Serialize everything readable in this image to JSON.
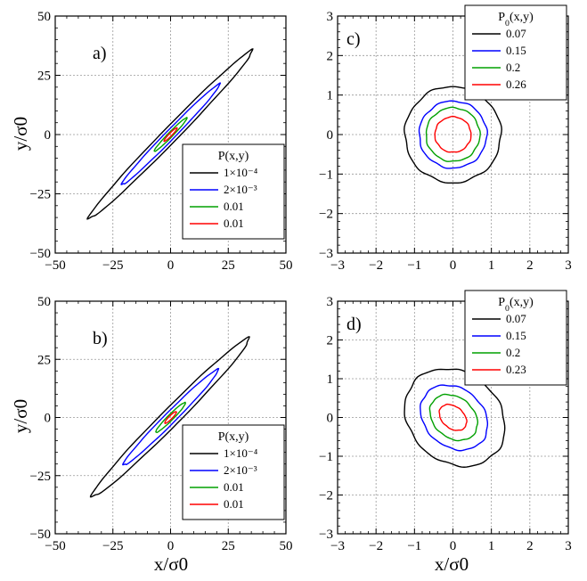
{
  "figure_axis_labels": {
    "y_left": "y/σ0",
    "x_left": "x/σ0",
    "x_right": "x/σ0"
  },
  "chart_data": [
    {
      "id": "a",
      "panel_label": "a)",
      "type": "line",
      "subtype": "contour",
      "xlim": [
        -50,
        50
      ],
      "ylim": [
        -50,
        50
      ],
      "xticks": [
        -50,
        -25,
        0,
        25,
        50
      ],
      "yticks": [
        -50,
        -25,
        0,
        25,
        50
      ],
      "grid": true,
      "legend_placement": "bottom-right",
      "legend_title": "P(x,y)",
      "contours": [
        {
          "label": "1×10⁻⁴",
          "color": "#000000",
          "shape": "ellipse",
          "center": [
            0,
            0
          ],
          "semi_major": 50.0,
          "semi_minor": 3.2,
          "angle_deg": 45
        },
        {
          "label": "2×10⁻³",
          "color": "#0000ff",
          "shape": "ellipse",
          "center": [
            0,
            0
          ],
          "semi_major": 30.0,
          "semi_minor": 2.0,
          "angle_deg": 45
        },
        {
          "label": "0.01",
          "color": "#00a000",
          "shape": "ellipse",
          "center": [
            0,
            0
          ],
          "semi_major": 10.0,
          "semi_minor": 1.0,
          "angle_deg": 45
        },
        {
          "label": "0.01",
          "color": "#ff0000",
          "shape": "ellipse",
          "center": [
            0,
            0
          ],
          "semi_major": 4.0,
          "semi_minor": 0.6,
          "angle_deg": 45
        }
      ]
    },
    {
      "id": "b",
      "panel_label": "b)",
      "type": "line",
      "subtype": "contour",
      "xlim": [
        -50,
        50
      ],
      "ylim": [
        -50,
        50
      ],
      "xticks": [
        -50,
        -25,
        0,
        25,
        50
      ],
      "yticks": [
        -50,
        -25,
        0,
        25,
        50
      ],
      "grid": true,
      "legend_placement": "bottom-right",
      "legend_title": "P(x,y)",
      "contours": [
        {
          "label": "1×10⁻⁴",
          "color": "#000000",
          "shape": "ellipse",
          "center": [
            0,
            0
          ],
          "semi_major": 48.0,
          "semi_minor": 3.8,
          "angle_deg": 45
        },
        {
          "label": "2×10⁻³",
          "color": "#0000ff",
          "shape": "ellipse",
          "center": [
            0,
            0
          ],
          "semi_major": 29.0,
          "semi_minor": 2.4,
          "angle_deg": 45
        },
        {
          "label": "0.01",
          "color": "#00a000",
          "shape": "ellipse",
          "center": [
            0,
            0
          ],
          "semi_major": 9.0,
          "semi_minor": 1.2,
          "angle_deg": 45
        },
        {
          "label": "0.01",
          "color": "#ff0000",
          "shape": "ellipse",
          "center": [
            0,
            0
          ],
          "semi_major": 3.5,
          "semi_minor": 0.7,
          "angle_deg": 45
        }
      ]
    },
    {
      "id": "c",
      "panel_label": "c)",
      "type": "line",
      "subtype": "contour",
      "xlim": [
        -3,
        3
      ],
      "ylim": [
        -3,
        3
      ],
      "xticks": [
        -3,
        -2,
        -1,
        0,
        1,
        2,
        3
      ],
      "yticks": [
        -3,
        -2,
        -1,
        0,
        1,
        2,
        3
      ],
      "grid": true,
      "legend_placement": "top-right",
      "legend_title": "P0(x,y)",
      "contours": [
        {
          "label": "0.07",
          "color": "#000000",
          "shape": "ellipse",
          "center": [
            0,
            0
          ],
          "semi_major": 1.25,
          "semi_minor": 1.22,
          "angle_deg": 0
        },
        {
          "label": "0.15",
          "color": "#0000ff",
          "shape": "ellipse",
          "center": [
            0,
            0
          ],
          "semi_major": 0.88,
          "semi_minor": 0.85,
          "angle_deg": 0
        },
        {
          "label": "0.2",
          "color": "#00a000",
          "shape": "ellipse",
          "center": [
            0,
            0
          ],
          "semi_major": 0.7,
          "semi_minor": 0.68,
          "angle_deg": 0
        },
        {
          "label": "0.26",
          "color": "#ff0000",
          "shape": "ellipse",
          "center": [
            0,
            0
          ],
          "semi_major": 0.47,
          "semi_minor": 0.45,
          "angle_deg": 0
        }
      ]
    },
    {
      "id": "d",
      "panel_label": "d)",
      "type": "line",
      "subtype": "contour",
      "xlim": [
        -3,
        3
      ],
      "ylim": [
        -3,
        3
      ],
      "xticks": [
        -3,
        -2,
        -1,
        0,
        1,
        2,
        3
      ],
      "yticks": [
        -3,
        -2,
        -1,
        0,
        1,
        2,
        3
      ],
      "grid": true,
      "legend_placement": "top-right",
      "legend_title": "P0(x,y)",
      "contours": [
        {
          "label": "0.07",
          "color": "#000000",
          "shape": "ellipse",
          "center": [
            0.05,
            0
          ],
          "semi_major": 1.4,
          "semi_minor": 1.15,
          "angle_deg": -40
        },
        {
          "label": "0.15",
          "color": "#0000ff",
          "shape": "ellipse",
          "center": [
            0.03,
            0
          ],
          "semi_major": 0.95,
          "semi_minor": 0.75,
          "angle_deg": -40
        },
        {
          "label": "0.2",
          "color": "#00a000",
          "shape": "ellipse",
          "center": [
            0.02,
            0
          ],
          "semi_major": 0.68,
          "semi_minor": 0.52,
          "angle_deg": -40
        },
        {
          "label": "0.23",
          "color": "#ff0000",
          "shape": "ellipse",
          "center": [
            0.0,
            0
          ],
          "semi_major": 0.4,
          "semi_minor": 0.28,
          "angle_deg": -40
        }
      ]
    }
  ]
}
